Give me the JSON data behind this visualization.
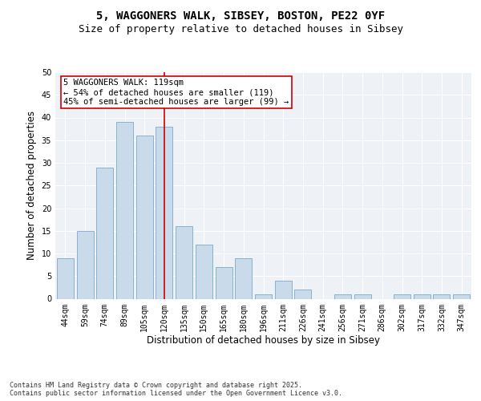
{
  "title1": "5, WAGGONERS WALK, SIBSEY, BOSTON, PE22 0YF",
  "title2": "Size of property relative to detached houses in Sibsey",
  "xlabel": "Distribution of detached houses by size in Sibsey",
  "ylabel": "Number of detached properties",
  "categories": [
    "44sqm",
    "59sqm",
    "74sqm",
    "89sqm",
    "105sqm",
    "120sqm",
    "135sqm",
    "150sqm",
    "165sqm",
    "180sqm",
    "196sqm",
    "211sqm",
    "226sqm",
    "241sqm",
    "256sqm",
    "271sqm",
    "286sqm",
    "302sqm",
    "317sqm",
    "332sqm",
    "347sqm"
  ],
  "values": [
    9,
    15,
    29,
    39,
    36,
    38,
    16,
    12,
    7,
    9,
    1,
    4,
    2,
    0,
    1,
    1,
    0,
    1,
    1,
    1,
    1
  ],
  "bar_color": "#c9daea",
  "bar_edge_color": "#7aaac8",
  "background_color": "#eef2f7",
  "grid_color": "#ffffff",
  "vline_x_index": 5,
  "vline_color": "#cc0000",
  "annotation_text": "5 WAGGONERS WALK: 119sqm\n← 54% of detached houses are smaller (119)\n45% of semi-detached houses are larger (99) →",
  "annotation_box_facecolor": "#ffffff",
  "annotation_box_edgecolor": "#cc0000",
  "ylim": [
    0,
    50
  ],
  "yticks": [
    0,
    5,
    10,
    15,
    20,
    25,
    30,
    35,
    40,
    45,
    50
  ],
  "footer": "Contains HM Land Registry data © Crown copyright and database right 2025.\nContains public sector information licensed under the Open Government Licence v3.0.",
  "title_fontsize": 10,
  "subtitle_fontsize": 9,
  "tick_fontsize": 7,
  "label_fontsize": 8.5,
  "annotation_fontsize": 7.5,
  "footer_fontsize": 6
}
